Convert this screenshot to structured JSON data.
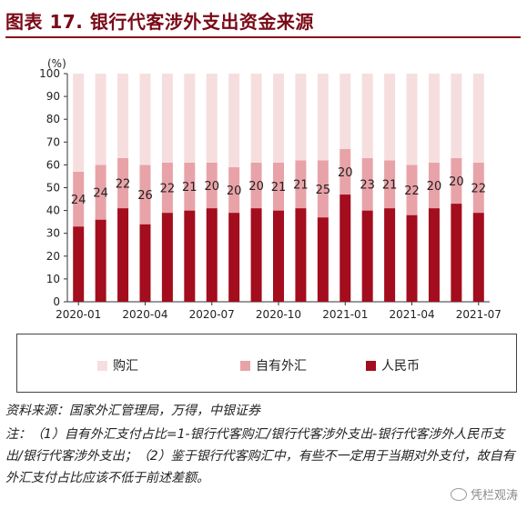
{
  "header": {
    "title": "图表 17. 银行代客涉外支出资金来源"
  },
  "chart_data": {
    "type": "bar",
    "stacked": true,
    "unit_label": "(%)",
    "ylim": [
      0,
      100
    ],
    "yticks": [
      0,
      10,
      20,
      30,
      40,
      50,
      60,
      70,
      80,
      90,
      100
    ],
    "x_tick_labels": [
      "2020-01",
      "2020-04",
      "2020-07",
      "2020-10",
      "2021-01",
      "2021-04",
      "2021-07"
    ],
    "x_tick_positions": [
      0,
      3,
      6,
      9,
      12,
      15,
      18
    ],
    "categories": [
      "2020-01",
      "2020-02",
      "2020-03",
      "2020-04",
      "2020-05",
      "2020-06",
      "2020-07",
      "2020-08",
      "2020-09",
      "2020-10",
      "2020-11",
      "2020-12",
      "2021-01",
      "2021-02",
      "2021-03",
      "2021-04",
      "2021-05",
      "2021-06",
      "2021-07"
    ],
    "series": [
      {
        "name": "人民币",
        "color": "#a30d1d",
        "values": [
          33,
          36,
          41,
          34,
          39,
          40,
          41,
          39,
          41,
          40,
          41,
          37,
          47,
          40,
          41,
          38,
          41,
          43,
          39
        ]
      },
      {
        "name": "自有外汇",
        "color": "#e8a3a8",
        "values": [
          24,
          24,
          22,
          26,
          22,
          21,
          20,
          20,
          20,
          21,
          21,
          25,
          20,
          23,
          21,
          22,
          20,
          20,
          22
        ]
      },
      {
        "name": "购汇",
        "color": "#f6dedf",
        "values": [
          43,
          40,
          37,
          40,
          39,
          39,
          39,
          41,
          39,
          39,
          38,
          38,
          33,
          37,
          38,
          40,
          39,
          37,
          39
        ]
      }
    ],
    "data_labels_series": "自有外汇",
    "grid": false,
    "legend": {
      "placement": "bottom",
      "order": [
        "购汇",
        "自有外汇",
        "人民币"
      ]
    }
  },
  "footer": {
    "source": "资料来源：国家外汇管理局，万得，中银证券",
    "note": "注：（1）自有外汇支付占比=1-银行代客购汇/银行代客涉外支出-银行代客涉外人民币支出/银行代客涉外支出；（2）鉴于银行代客购汇中，有些不一定用于当期对外支付，故自有外汇支付占比应该不低于前述差额。"
  },
  "watermark": {
    "text": "凭栏观涛",
    "icon": "wechat-icon"
  }
}
